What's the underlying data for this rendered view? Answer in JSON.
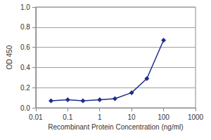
{
  "chart_data": {
    "type": "line",
    "x_label": "Recombinant Protein Concentration (ng/ml)",
    "y_label": "OD 450",
    "x": [
      0.03,
      0.1,
      0.3,
      1,
      3,
      10,
      30,
      100
    ],
    "values": [
      0.07,
      0.08,
      0.07,
      0.08,
      0.09,
      0.15,
      0.29,
      0.67
    ],
    "color": "#1f2d8c",
    "marker": "diamond",
    "log": "x",
    "xlim": [
      0.01,
      1000
    ],
    "xticks": [
      0.01,
      0.1,
      1,
      10,
      100,
      1000
    ],
    "ylim": [
      0,
      1
    ],
    "yticks": [
      {
        "value": 0,
        "label": "0.0"
      },
      0.2,
      0.4,
      0.6,
      0.8,
      {
        "value": 1,
        "label": "1.0"
      }
    ],
    "grid": true
  }
}
